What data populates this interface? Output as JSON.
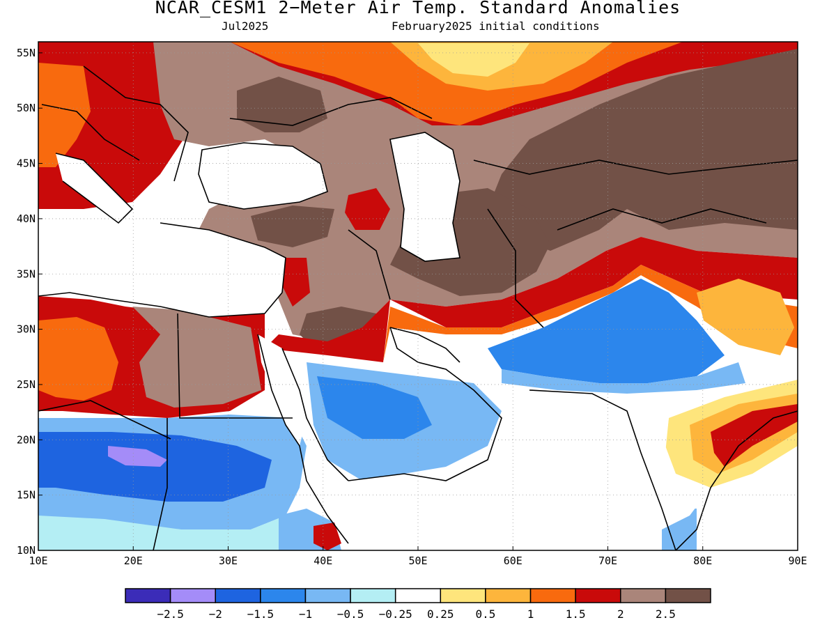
{
  "title": "NCAR_CESM1 2−Meter Air Temp. Standard Anomalies",
  "subtitle_left": "Jul2025",
  "subtitle_right": "February2025 initial conditions",
  "map": {
    "lon_range": [
      10,
      90
    ],
    "lat_range": [
      10,
      56
    ],
    "grid": "dotted",
    "x_ticks": [
      "10E",
      "20E",
      "30E",
      "40E",
      "50E",
      "60E",
      "70E",
      "80E",
      "90E"
    ],
    "y_ticks": [
      "55N",
      "50N",
      "45N",
      "40N",
      "35N",
      "30N",
      "25N",
      "20N",
      "15N",
      "10N"
    ]
  },
  "colorbar": {
    "colors": [
      "#3b2cb8",
      "#a48cf8",
      "#1e64e0",
      "#2c86ec",
      "#78b8f4",
      "#b4eef4",
      "#ffffff",
      "#fee57c",
      "#fdb53c",
      "#f86a0e",
      "#c90a0a",
      "#aa857a",
      "#725147"
    ],
    "labels": [
      "−2.5",
      "−2",
      "−1.5",
      "−1",
      "−0.5",
      "−0.25",
      "0.25",
      "0.5",
      "1",
      "1.5",
      "2",
      "2.5"
    ]
  },
  "regions": [
    {
      "name": "europe-warm",
      "class": "1.5"
    },
    {
      "name": "russia-warm",
      "class": "1"
    },
    {
      "name": "central-asia-anomaly",
      "class": "2.5"
    },
    {
      "name": "middle-east-anomaly",
      "class": "2.5"
    },
    {
      "name": "sahara-warm",
      "class": "1.5"
    },
    {
      "name": "sahel-cold",
      "class": "-1.5"
    },
    {
      "name": "arabia-cold",
      "class": "-1"
    },
    {
      "name": "india-cold",
      "class": "-1"
    },
    {
      "name": "bay-of-bengal-warm",
      "class": "1"
    }
  ]
}
